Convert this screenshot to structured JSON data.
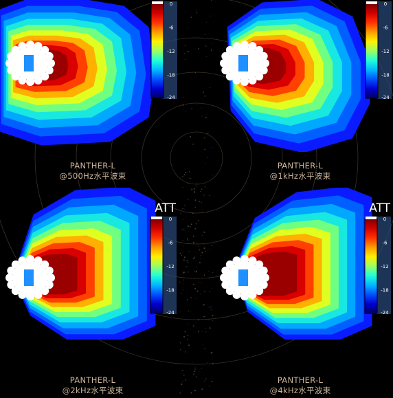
{
  "colors": {
    "background": "#000000",
    "caption": "#c9b49a",
    "speaker": "#ffffff",
    "driver": "#1e90ff"
  },
  "colormap_icon": "jet-colorbar",
  "panels": [
    {
      "caption_line1": "PANTHER-L",
      "caption_line2": "@500Hz水平波束",
      "legend_title": ""
    },
    {
      "caption_line1": "PANTHER-L",
      "caption_line2": "@1kHz水平波束",
      "legend_title": ""
    },
    {
      "caption_line1": "PANTHER-L",
      "caption_line2": "@2kHz水平波束",
      "legend_title": "ATT"
    },
    {
      "caption_line1": "PANTHER-L",
      "caption_line2": "@4kHz水平波束",
      "legend_title": "ATT"
    }
  ],
  "chart_data": [
    {
      "type": "heatmap",
      "title": "PANTHER-L @500Hz水平波束",
      "colorbar": {
        "ticks": [
          "0",
          "-6",
          "-12",
          "-18",
          "-24"
        ],
        "range": [
          -24,
          0
        ],
        "colormap": "jet"
      },
      "legend_title": ""
    },
    {
      "type": "heatmap",
      "title": "PANTHER-L @1kHz水平波束",
      "colorbar": {
        "ticks": [
          "0",
          "-6",
          "-12",
          "-18",
          "-24"
        ],
        "range": [
          -24,
          0
        ],
        "colormap": "jet"
      },
      "legend_title": ""
    },
    {
      "type": "heatmap",
      "title": "PANTHER-L @2kHz水平波束",
      "colorbar": {
        "ticks": [
          "0",
          "-6",
          "-12",
          "-18",
          "-24"
        ],
        "range": [
          -24,
          0
        ],
        "colormap": "jet"
      },
      "legend_title": "ATT"
    },
    {
      "type": "heatmap",
      "title": "PANTHER-L @4kHz水平波束",
      "colorbar": {
        "ticks": [
          "0",
          "-6",
          "-12",
          "-18",
          "-24"
        ],
        "range": [
          -24,
          0
        ],
        "colormap": "jet"
      },
      "legend_title": "ATT"
    }
  ]
}
